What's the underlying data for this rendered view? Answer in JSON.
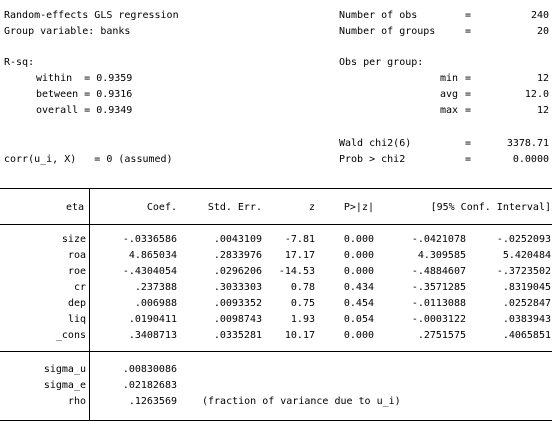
{
  "header": {
    "title": "Random-effects GLS regression",
    "group_variable": "Group variable: banks",
    "nobs_label": "Number of obs",
    "nobs_value": "240",
    "ngroups_label": "Number of groups",
    "ngroups_value": "20",
    "eq": "=",
    "rsq_label": "R-sq:",
    "within": "within  = 0.9359",
    "between": "between = 0.9316",
    "overall": "overall = 0.9349",
    "obs_per_group": "Obs per group:",
    "min_label": "min",
    "min_value": "12",
    "avg_label": "avg",
    "avg_value": "12.0",
    "max_label": "max",
    "max_value": "12",
    "wald_label": "Wald chi2(6)",
    "wald_value": "3378.71",
    "prob_label": "Prob > chi2",
    "prob_value": "0.0000",
    "corr": "corr(u_i, X)   = 0 (assumed)"
  },
  "table": {
    "columns": [
      "eta",
      "Coef.",
      "Std. Err.",
      "z",
      "P>|z|",
      "[95% Conf. Interval]"
    ],
    "rows": [
      {
        "var": "size",
        "coef": "-.0336586",
        "se": ".0043109",
        "z": "-7.81",
        "p": "0.000",
        "lo": "-.0421078",
        "hi": "-.0252093"
      },
      {
        "var": "roa",
        "coef": "4.865034",
        "se": ".2833976",
        "z": "17.17",
        "p": "0.000",
        "lo": "4.309585",
        "hi": "5.420484"
      },
      {
        "var": "roe",
        "coef": "-.4304054",
        "se": ".0296206",
        "z": "-14.53",
        "p": "0.000",
        "lo": "-.4884607",
        "hi": "-.3723502"
      },
      {
        "var": "cr",
        "coef": ".237388",
        "se": ".3033303",
        "z": "0.78",
        "p": "0.434",
        "lo": "-.3571285",
        "hi": ".8319045"
      },
      {
        "var": "dep",
        "coef": ".006988",
        "se": ".0093352",
        "z": "0.75",
        "p": "0.454",
        "lo": "-.0113088",
        "hi": ".0252847"
      },
      {
        "var": "liq",
        "coef": ".0190411",
        "se": ".0098743",
        "z": "1.93",
        "p": "0.054",
        "lo": "-.0003122",
        "hi": ".0383943"
      },
      {
        "var": "_cons",
        "coef": ".3408713",
        "se": ".0335281",
        "z": "10.17",
        "p": "0.000",
        "lo": ".2751575",
        "hi": ".4065851"
      }
    ],
    "sigma": [
      {
        "var": "sigma_u",
        "value": ".00830086",
        "note": ""
      },
      {
        "var": "sigma_e",
        "value": ".02182683",
        "note": ""
      },
      {
        "var": "rho",
        "value": ".1263569",
        "note": "(fraction of variance due to u_i)"
      }
    ]
  }
}
